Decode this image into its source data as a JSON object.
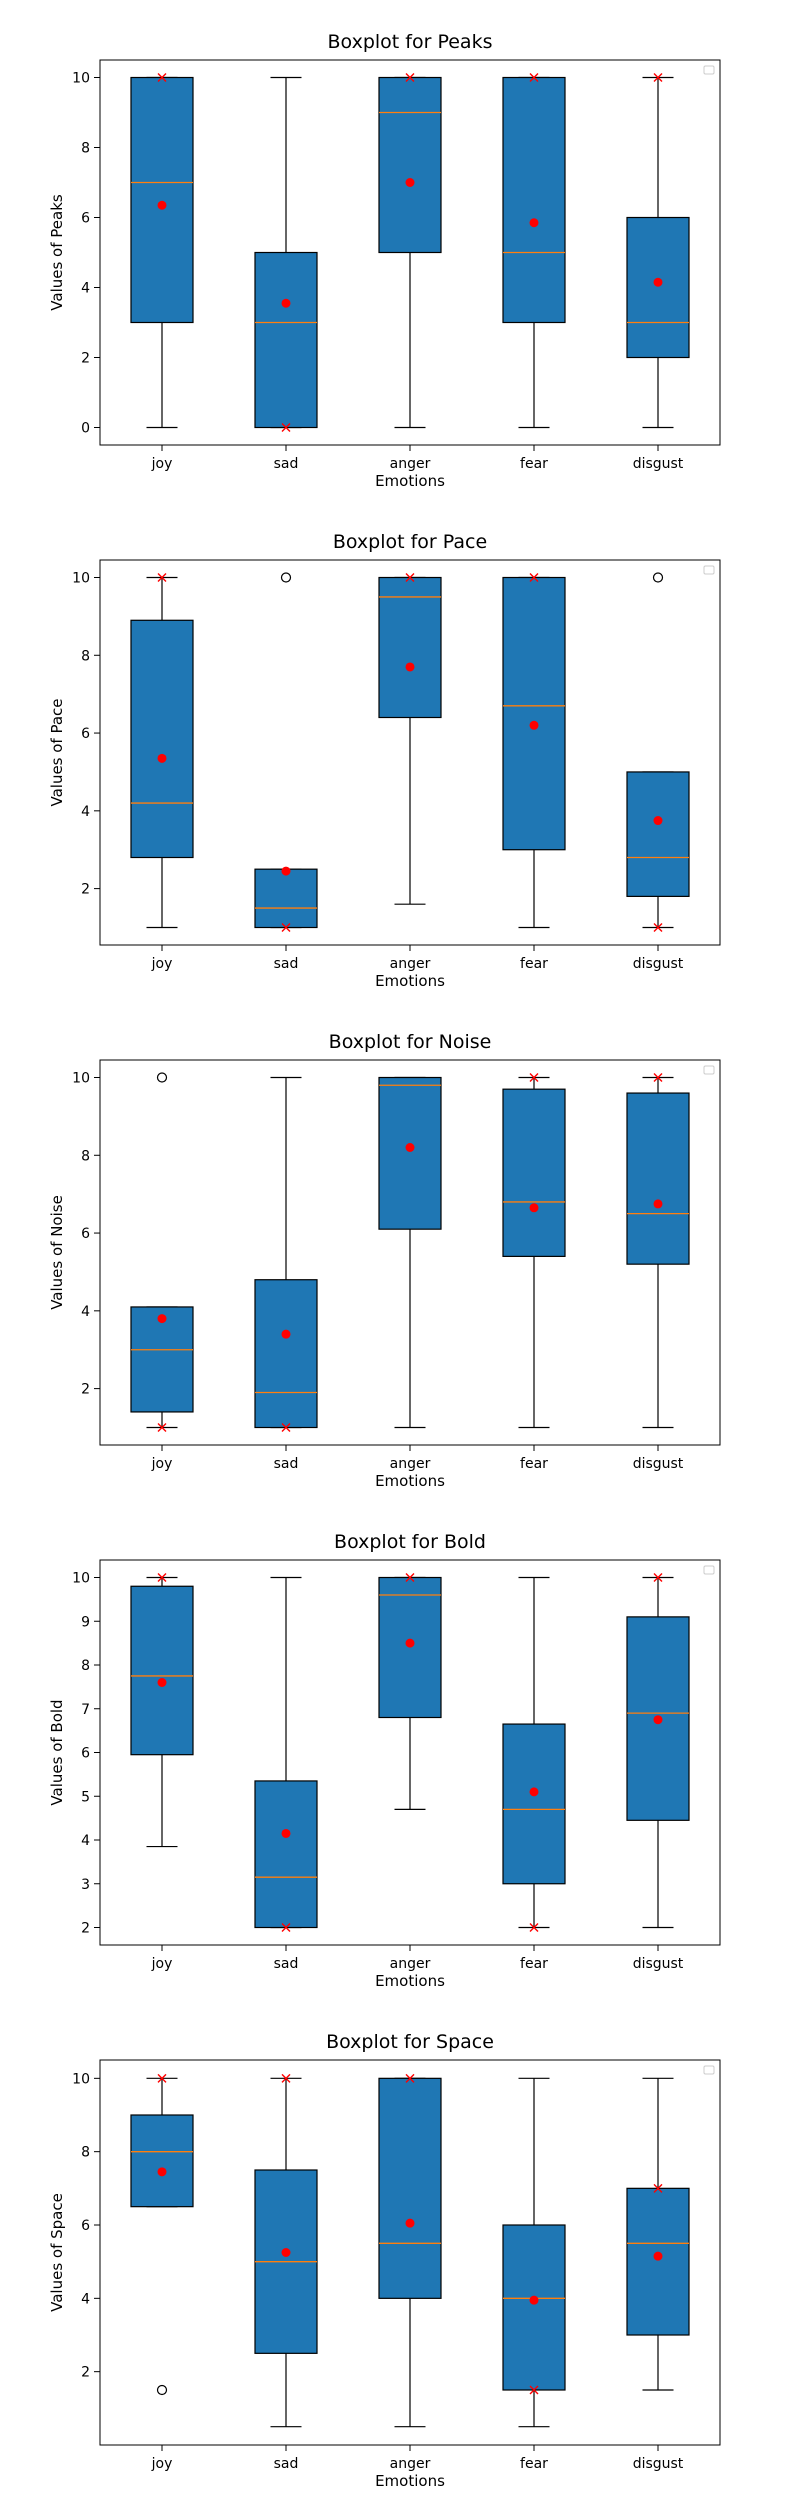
{
  "colors": {
    "box": "#1f77b4",
    "median": "#ff7f0e",
    "mean": "#ff0000",
    "extreme": "#ff0000",
    "line": "#000000"
  },
  "legend": {
    "placement": "top-right",
    "entries": []
  },
  "chart_data": [
    {
      "type": "boxplot",
      "title": "Boxplot for Peaks",
      "xlabel": "Emotions",
      "ylabel": "Values of Peaks",
      "categories": [
        "joy",
        "sad",
        "anger",
        "fear",
        "disgust"
      ],
      "ylim": [
        -0.5,
        10.5
      ],
      "yticks": [
        0,
        2,
        4,
        6,
        8,
        10
      ],
      "boxes": [
        {
          "whisker_low": 0,
          "q1": 3,
          "median": 7,
          "q3": 10,
          "whisker_high": 10,
          "mean": 6.35,
          "outliers": [],
          "extremes": [
            10
          ]
        },
        {
          "whisker_low": 0,
          "q1": 0,
          "median": 3,
          "q3": 5,
          "whisker_high": 10,
          "mean": 3.55,
          "outliers": [],
          "extremes": [
            0
          ]
        },
        {
          "whisker_low": 0,
          "q1": 5,
          "median": 9,
          "q3": 10,
          "whisker_high": 10,
          "mean": 7.0,
          "outliers": [],
          "extremes": [
            10
          ]
        },
        {
          "whisker_low": 0,
          "q1": 3,
          "median": 5,
          "q3": 10,
          "whisker_high": 10,
          "mean": 5.85,
          "outliers": [],
          "extremes": [
            10
          ]
        },
        {
          "whisker_low": 0,
          "q1": 2,
          "median": 3,
          "q3": 6,
          "whisker_high": 10,
          "mean": 4.15,
          "outliers": [],
          "extremes": [
            10
          ]
        }
      ]
    },
    {
      "type": "boxplot",
      "title": "Boxplot for Pace",
      "xlabel": "Emotions",
      "ylabel": "Values of Pace",
      "categories": [
        "joy",
        "sad",
        "anger",
        "fear",
        "disgust"
      ],
      "ylim": [
        0.55,
        10.45
      ],
      "yticks": [
        2,
        4,
        6,
        8,
        10
      ],
      "boxes": [
        {
          "whisker_low": 1,
          "q1": 2.8,
          "median": 4.2,
          "q3": 8.9,
          "whisker_high": 10,
          "mean": 5.35,
          "outliers": [],
          "extremes": [
            10
          ]
        },
        {
          "whisker_low": 1,
          "q1": 1,
          "median": 1.5,
          "q3": 2.5,
          "whisker_high": 2.5,
          "mean": 2.45,
          "outliers": [
            10
          ],
          "extremes": [
            1
          ]
        },
        {
          "whisker_low": 1.6,
          "q1": 6.4,
          "median": 9.5,
          "q3": 10,
          "whisker_high": 10,
          "mean": 7.7,
          "outliers": [],
          "extremes": [
            10
          ]
        },
        {
          "whisker_low": 1,
          "q1": 3,
          "median": 6.7,
          "q3": 10,
          "whisker_high": 10,
          "mean": 6.2,
          "outliers": [],
          "extremes": [
            10
          ]
        },
        {
          "whisker_low": 1,
          "q1": 1.8,
          "median": 2.8,
          "q3": 5,
          "whisker_high": 5,
          "mean": 3.75,
          "outliers": [
            10
          ],
          "extremes": [
            1
          ]
        }
      ]
    },
    {
      "type": "boxplot",
      "title": "Boxplot for Noise",
      "xlabel": "Emotions",
      "ylabel": "Values of Noise",
      "categories": [
        "joy",
        "sad",
        "anger",
        "fear",
        "disgust"
      ],
      "ylim": [
        0.55,
        10.45
      ],
      "yticks": [
        2,
        4,
        6,
        8,
        10
      ],
      "boxes": [
        {
          "whisker_low": 1,
          "q1": 1.4,
          "median": 3,
          "q3": 4.1,
          "whisker_high": 4.1,
          "mean": 3.8,
          "outliers": [
            10
          ],
          "extremes": [
            1
          ]
        },
        {
          "whisker_low": 1,
          "q1": 1,
          "median": 1.9,
          "q3": 4.8,
          "whisker_high": 10,
          "mean": 3.4,
          "outliers": [],
          "extremes": [
            1
          ]
        },
        {
          "whisker_low": 1,
          "q1": 6.1,
          "median": 9.8,
          "q3": 10,
          "whisker_high": 10,
          "mean": 8.2,
          "outliers": [],
          "extremes": []
        },
        {
          "whisker_low": 1,
          "q1": 5.4,
          "median": 6.8,
          "q3": 9.7,
          "whisker_high": 10,
          "mean": 6.65,
          "outliers": [],
          "extremes": [
            10
          ]
        },
        {
          "whisker_low": 1,
          "q1": 5.2,
          "median": 6.5,
          "q3": 9.6,
          "whisker_high": 10,
          "mean": 6.75,
          "outliers": [],
          "extremes": [
            10
          ]
        }
      ]
    },
    {
      "type": "boxplot",
      "title": "Boxplot for Bold",
      "xlabel": "Emotions",
      "ylabel": "Values of Bold",
      "categories": [
        "joy",
        "sad",
        "anger",
        "fear",
        "disgust"
      ],
      "ylim": [
        1.6,
        10.4
      ],
      "yticks": [
        2,
        3,
        4,
        5,
        6,
        7,
        8,
        9,
        10
      ],
      "boxes": [
        {
          "whisker_low": 3.85,
          "q1": 5.95,
          "median": 7.75,
          "q3": 9.8,
          "whisker_high": 10,
          "mean": 7.6,
          "outliers": [],
          "extremes": [
            10
          ]
        },
        {
          "whisker_low": 2,
          "q1": 2,
          "median": 3.15,
          "q3": 5.35,
          "whisker_high": 10,
          "mean": 4.15,
          "outliers": [],
          "extremes": [
            2
          ]
        },
        {
          "whisker_low": 4.7,
          "q1": 6.8,
          "median": 9.6,
          "q3": 10,
          "whisker_high": 10,
          "mean": 8.5,
          "outliers": [],
          "extremes": [
            10
          ]
        },
        {
          "whisker_low": 2,
          "q1": 3,
          "median": 4.7,
          "q3": 6.65,
          "whisker_high": 10,
          "mean": 5.1,
          "outliers": [],
          "extremes": [
            2
          ]
        },
        {
          "whisker_low": 2,
          "q1": 4.45,
          "median": 6.9,
          "q3": 9.1,
          "whisker_high": 10,
          "mean": 6.75,
          "outliers": [],
          "extremes": [
            10
          ]
        }
      ]
    },
    {
      "type": "boxplot",
      "title": "Boxplot for Space",
      "xlabel": "Emotions",
      "ylabel": "Values of Space",
      "categories": [
        "joy",
        "sad",
        "anger",
        "fear",
        "disgust"
      ],
      "ylim": [
        0.0,
        10.5
      ],
      "yticks": [
        2,
        4,
        6,
        8,
        10
      ],
      "boxes": [
        {
          "whisker_low": 6.5,
          "q1": 6.5,
          "median": 8,
          "q3": 9,
          "whisker_high": 10,
          "mean": 7.45,
          "outliers": [
            1.5
          ],
          "extremes": [
            10
          ]
        },
        {
          "whisker_low": 0.5,
          "q1": 2.5,
          "median": 5,
          "q3": 7.5,
          "whisker_high": 10,
          "mean": 5.25,
          "outliers": [],
          "extremes": [
            10
          ]
        },
        {
          "whisker_low": 0.5,
          "q1": 4,
          "median": 5.5,
          "q3": 10,
          "whisker_high": 10,
          "mean": 6.05,
          "outliers": [],
          "extremes": [
            10
          ]
        },
        {
          "whisker_low": 0.5,
          "q1": 1.5,
          "median": 4,
          "q3": 6,
          "whisker_high": 10,
          "mean": 3.95,
          "outliers": [],
          "extremes": [
            1.5
          ]
        },
        {
          "whisker_low": 1.5,
          "q1": 3,
          "median": 5.5,
          "q3": 7,
          "whisker_high": 10,
          "mean": 5.15,
          "outliers": [],
          "extremes": [
            7
          ]
        }
      ]
    }
  ]
}
